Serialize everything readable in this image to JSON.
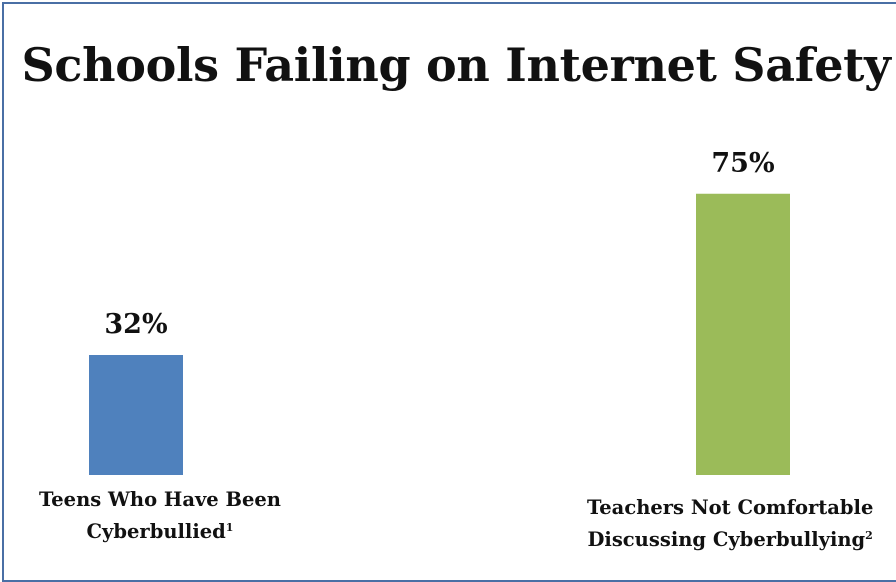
{
  "title": "Schools Failing on Internet Safety",
  "chart_data": {
    "type": "bar",
    "title": "Schools Failing on Internet Safety",
    "categories": [
      {
        "lines": [
          "Teens Who Have Been",
          "Cyberbullied"
        ],
        "footnote": "1"
      },
      {
        "lines": [
          "Teachers Not Comfortable",
          "Discussing Cyberbullying"
        ],
        "footnote": "2"
      }
    ],
    "values": [
      32,
      75
    ],
    "data_labels": [
      "32%",
      "75%"
    ],
    "colors": [
      "#4f81bd",
      "#9bbb59"
    ],
    "ylim": [
      0,
      100
    ],
    "grid": false,
    "legend": "none",
    "xlabel": "",
    "ylabel": ""
  },
  "colors": {
    "frame": "#4a6fa5",
    "text": "#111111",
    "background": "#ffffff"
  }
}
